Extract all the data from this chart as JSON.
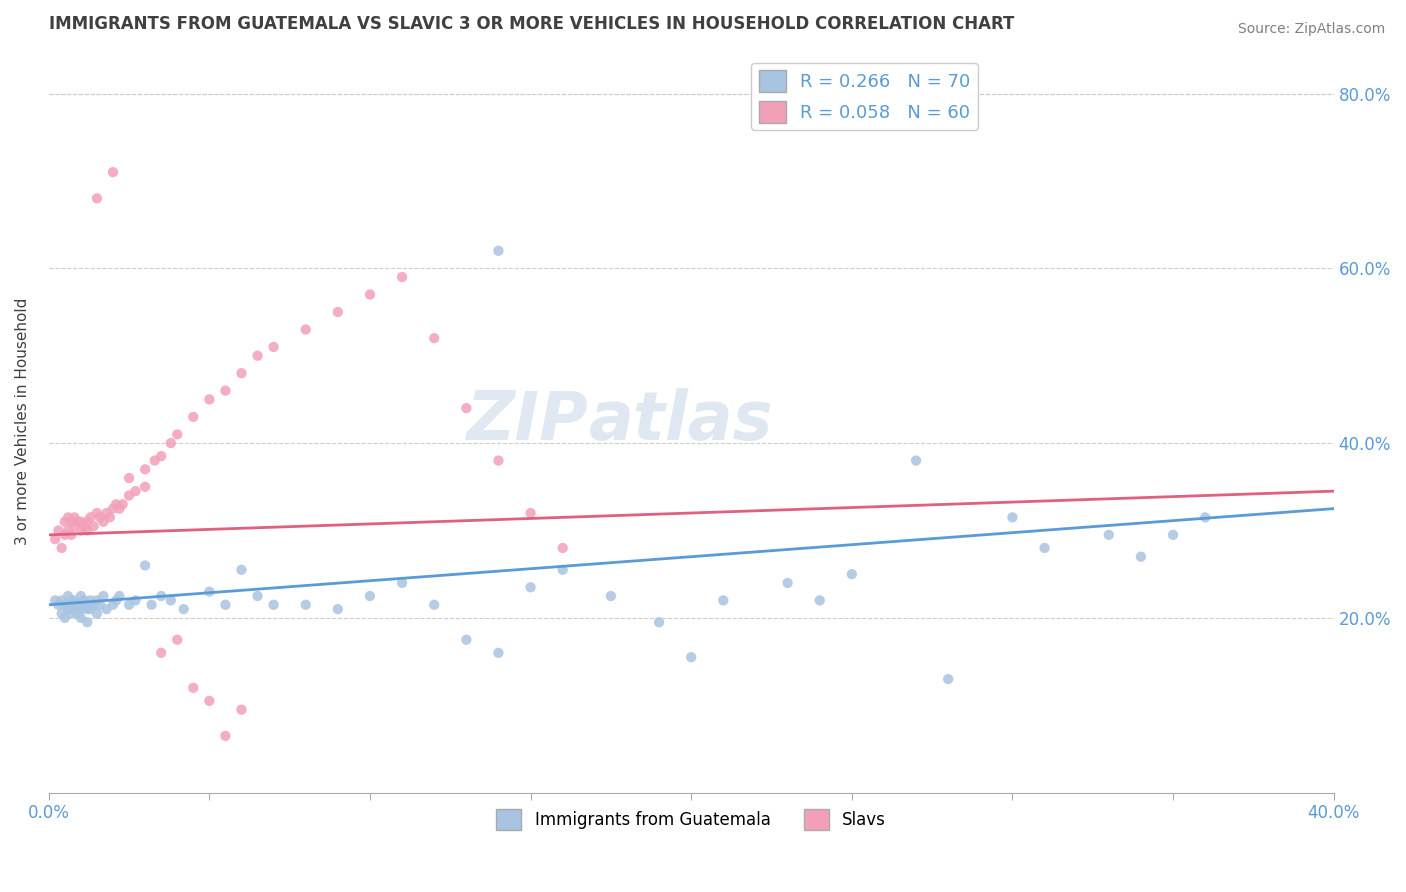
{
  "title": "IMMIGRANTS FROM GUATEMALA VS SLAVIC 3 OR MORE VEHICLES IN HOUSEHOLD CORRELATION CHART",
  "source": "Source: ZipAtlas.com",
  "ylabel": "3 or more Vehicles in Household",
  "xlim": [
    0.0,
    0.4
  ],
  "ylim": [
    0.0,
    0.85
  ],
  "legend1_r": "R = 0.266",
  "legend1_n": "N = 70",
  "legend2_r": "R = 0.058",
  "legend2_n": "N = 60",
  "legend_label1": "Immigrants from Guatemala",
  "legend_label2": "Slavs",
  "blue_color": "#a8c4e0",
  "pink_color": "#f2a0b8",
  "blue_line_color": "#5b9bd5",
  "pink_line_color": "#e06080",
  "title_color": "#404040",
  "source_color": "#808080",
  "watermark": "ZIPatlas",
  "blue_scatter_x": [
    0.002,
    0.003,
    0.004,
    0.004,
    0.005,
    0.005,
    0.006,
    0.006,
    0.007,
    0.007,
    0.007,
    0.008,
    0.008,
    0.009,
    0.009,
    0.01,
    0.01,
    0.01,
    0.011,
    0.011,
    0.012,
    0.012,
    0.013,
    0.013,
    0.014,
    0.015,
    0.015,
    0.016,
    0.017,
    0.018,
    0.02,
    0.021,
    0.022,
    0.025,
    0.027,
    0.03,
    0.032,
    0.035,
    0.038,
    0.042,
    0.05,
    0.055,
    0.06,
    0.065,
    0.07,
    0.08,
    0.09,
    0.1,
    0.11,
    0.12,
    0.13,
    0.14,
    0.15,
    0.14,
    0.16,
    0.175,
    0.19,
    0.2,
    0.21,
    0.23,
    0.24,
    0.25,
    0.27,
    0.28,
    0.3,
    0.31,
    0.33,
    0.34,
    0.35,
    0.36
  ],
  "blue_scatter_y": [
    0.22,
    0.215,
    0.22,
    0.205,
    0.215,
    0.2,
    0.225,
    0.21,
    0.22,
    0.215,
    0.205,
    0.22,
    0.21,
    0.215,
    0.205,
    0.225,
    0.21,
    0.2,
    0.22,
    0.215,
    0.21,
    0.195,
    0.22,
    0.21,
    0.215,
    0.22,
    0.205,
    0.215,
    0.225,
    0.21,
    0.215,
    0.22,
    0.225,
    0.215,
    0.22,
    0.26,
    0.215,
    0.225,
    0.22,
    0.21,
    0.23,
    0.215,
    0.255,
    0.225,
    0.215,
    0.215,
    0.21,
    0.225,
    0.24,
    0.215,
    0.175,
    0.16,
    0.235,
    0.62,
    0.255,
    0.225,
    0.195,
    0.155,
    0.22,
    0.24,
    0.22,
    0.25,
    0.38,
    0.13,
    0.315,
    0.28,
    0.295,
    0.27,
    0.295,
    0.315
  ],
  "pink_scatter_x": [
    0.002,
    0.003,
    0.004,
    0.005,
    0.005,
    0.006,
    0.006,
    0.007,
    0.007,
    0.008,
    0.008,
    0.009,
    0.01,
    0.01,
    0.011,
    0.012,
    0.012,
    0.013,
    0.014,
    0.015,
    0.016,
    0.017,
    0.018,
    0.019,
    0.02,
    0.021,
    0.022,
    0.023,
    0.025,
    0.027,
    0.03,
    0.033,
    0.035,
    0.038,
    0.04,
    0.045,
    0.05,
    0.055,
    0.06,
    0.065,
    0.07,
    0.08,
    0.09,
    0.1,
    0.11,
    0.12,
    0.13,
    0.14,
    0.15,
    0.16,
    0.015,
    0.02,
    0.025,
    0.03,
    0.035,
    0.04,
    0.045,
    0.05,
    0.055,
    0.06
  ],
  "pink_scatter_y": [
    0.29,
    0.3,
    0.28,
    0.31,
    0.295,
    0.315,
    0.3,
    0.31,
    0.295,
    0.315,
    0.305,
    0.31,
    0.3,
    0.31,
    0.305,
    0.31,
    0.3,
    0.315,
    0.305,
    0.32,
    0.315,
    0.31,
    0.32,
    0.315,
    0.325,
    0.33,
    0.325,
    0.33,
    0.34,
    0.345,
    0.37,
    0.38,
    0.385,
    0.4,
    0.41,
    0.43,
    0.45,
    0.46,
    0.48,
    0.5,
    0.51,
    0.53,
    0.55,
    0.57,
    0.59,
    0.52,
    0.44,
    0.38,
    0.32,
    0.28,
    0.68,
    0.71,
    0.36,
    0.35,
    0.16,
    0.175,
    0.12,
    0.105,
    0.065,
    0.095
  ]
}
